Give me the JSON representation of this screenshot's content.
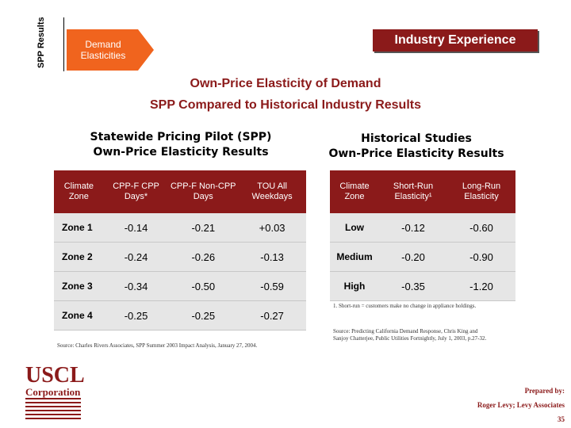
{
  "section_label": "SPP Results",
  "breadcrumb": "Demand Elasticities",
  "header_box": "Industry Experience",
  "title_line1": "Own-Price Elasticity of Demand",
  "title_line2": "SPP Compared to Historical Industry Results",
  "left": {
    "heading_line1": "Statewide Pricing Pilot (SPP)",
    "heading_line2": "Own-Price Elasticity Results",
    "columns": [
      "Climate Zone",
      "CPP-F CPP Days*",
      "CPP-F Non-CPP Days",
      "TOU All Weekdays"
    ],
    "rows": [
      [
        "Zone 1",
        "-0.14",
        "-0.21",
        "+0.03"
      ],
      [
        "Zone 2",
        "-0.24",
        "-0.26",
        "-0.13"
      ],
      [
        "Zone 3",
        "-0.34",
        "-0.50",
        "-0.59"
      ],
      [
        "Zone 4",
        "-0.25",
        "-0.25",
        "-0.27"
      ]
    ],
    "source": "Source: Charles Rivers Associates, SPP Summer 2003 Impact Analysis, January 27, 2004."
  },
  "right": {
    "heading_line1": "Historical Studies",
    "heading_line2": "Own-Price Elasticity Results",
    "columns": [
      "Climate Zone",
      "Short-Run Elasticity¹",
      "Long-Run Elasticity"
    ],
    "rows": [
      [
        "Low",
        "-0.12",
        "-0.60"
      ],
      [
        "Medium",
        "-0.20",
        "-0.90"
      ],
      [
        "High",
        "-0.35",
        "-1.20"
      ]
    ],
    "footnote": "1.   Short-run = customers make no change in appliance holdings.",
    "source_line1": "Source: Predicting California Demand Response, Chris King and",
    "source_line2": "Sanjoy Chatterjee, Public Utilities Fortnightly, July 1, 2003, p.27-32."
  },
  "logo": {
    "line1": "USCL",
    "line2": "Corporation"
  },
  "prepared_by": {
    "label": "Prepared by:",
    "name": "Roger Levy; Levy Associates",
    "page": "35"
  },
  "colors": {
    "accent": "#8b1a1a",
    "chevron": "#f0641e",
    "cell_bg": "#e6e6e6"
  }
}
